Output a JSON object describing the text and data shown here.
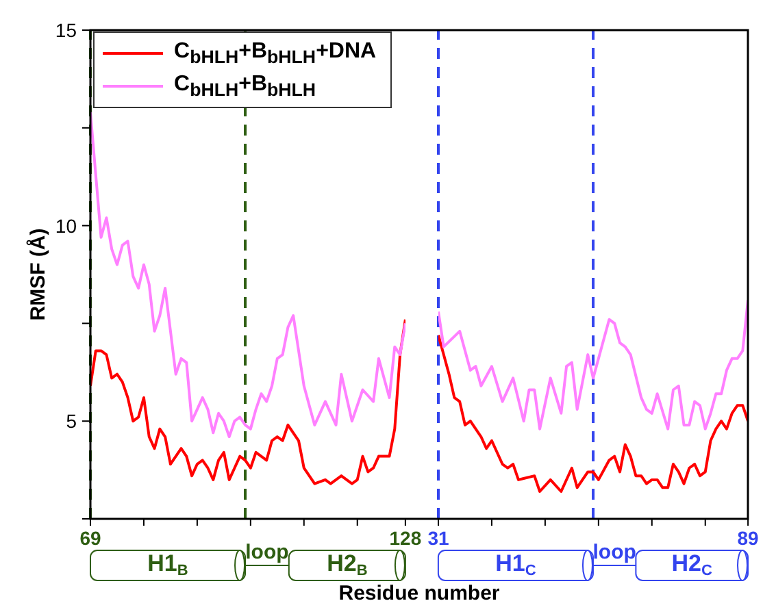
{
  "chart_data": [
    {
      "type": "line",
      "xlabel": "Residue number",
      "ylabel": "RMSF (Å)",
      "xlim": [
        69,
        128
      ],
      "xticks": [
        69,
        {
          "value": 79,
          "label": null
        },
        {
          "value": 89,
          "label": null
        },
        {
          "value": 99,
          "label": null
        },
        {
          "value": 109,
          "label": null
        },
        {
          "value": 119,
          "label": null
        },
        128
      ],
      "ylim": [
        2.5,
        15
      ],
      "yticks": [
        {
          "value": 2.5,
          "label": null
        },
        5,
        {
          "value": 7.5,
          "label": null
        },
        10,
        {
          "value": 12.5,
          "label": null
        },
        15
      ],
      "legend": "top left",
      "marker": "none",
      "line_style": "solid",
      "ref_lines": [
        {
          "axis": "x",
          "value": 69,
          "color": "#2e5e12",
          "line_style": "dashed"
        },
        {
          "axis": "x",
          "value": 98,
          "color": "#2e5e12",
          "line_style": "dashed"
        }
      ],
      "annotations": [
        "H1$_{B}$",
        "loop",
        "H2$_{B}$"
      ],
      "series": [
        {
          "name": "C$_{bHLH}$+B$_{bHLH}$+DNA",
          "color": "#ff0000",
          "x": [
            69,
            70,
            71,
            72,
            73,
            74,
            75,
            76,
            77,
            78,
            79,
            80,
            81,
            82,
            83,
            84,
            85,
            86,
            87,
            88,
            89,
            90,
            91,
            92,
            93,
            94,
            95,
            96,
            97,
            98,
            99,
            100,
            101,
            102,
            103,
            104,
            105,
            106,
            107,
            108,
            109,
            111,
            113,
            114,
            116,
            118,
            119,
            120,
            121,
            122,
            123,
            124,
            125,
            126,
            127,
            128
          ],
          "values": [
            5.9,
            6.8,
            6.8,
            6.7,
            6.1,
            6.2,
            6.0,
            5.6,
            5.0,
            5.1,
            5.6,
            4.6,
            4.3,
            4.8,
            4.6,
            3.9,
            4.1,
            4.3,
            4.1,
            3.6,
            3.9,
            4.0,
            3.8,
            3.5,
            4.0,
            4.2,
            3.5,
            3.8,
            4.1,
            4.0,
            3.8,
            4.2,
            4.1,
            4.0,
            4.5,
            4.6,
            4.5,
            4.9,
            4.7,
            4.5,
            3.8,
            3.4,
            3.5,
            3.4,
            3.6,
            3.4,
            3.5,
            4.1,
            3.7,
            3.8,
            4.1,
            4.1,
            4.1,
            4.8,
            6.7,
            7.6
          ]
        },
        {
          "name": "C$_{bHLH}$+B$_{bHLH}$",
          "color": "#ff80ff",
          "x": [
            69,
            71,
            72,
            73,
            74,
            75,
            76,
            77,
            78,
            79,
            80,
            81,
            82,
            83,
            84,
            85,
            86,
            87,
            88,
            89,
            90,
            91,
            92,
            93,
            94,
            95,
            96,
            97,
            98,
            99,
            100,
            101,
            102,
            103,
            104,
            105,
            106,
            107,
            109,
            111,
            113,
            115,
            116,
            118,
            120,
            122,
            123,
            125,
            126,
            127,
            128
          ],
          "values": [
            12.9,
            9.7,
            10.2,
            9.4,
            9.0,
            9.5,
            9.6,
            8.7,
            8.4,
            9.0,
            8.5,
            7.3,
            7.7,
            8.4,
            7.3,
            6.2,
            6.6,
            6.5,
            5.0,
            5.3,
            5.6,
            5.3,
            4.7,
            5.2,
            5.0,
            4.6,
            5.0,
            5.1,
            4.9,
            4.8,
            5.3,
            5.7,
            5.5,
            5.9,
            6.6,
            6.7,
            7.4,
            7.7,
            5.9,
            4.9,
            5.5,
            4.9,
            6.2,
            5.0,
            5.8,
            5.5,
            6.6,
            5.6,
            6.9,
            6.7,
            7.5
          ]
        }
      ]
    },
    {
      "type": "line",
      "xlim": [
        31,
        89
      ],
      "xticks": [
        31,
        {
          "value": 41,
          "label": null
        },
        {
          "value": 51,
          "label": null
        },
        {
          "value": 61,
          "label": null
        },
        {
          "value": 71,
          "label": null
        },
        {
          "value": 81,
          "label": null
        },
        89
      ],
      "ylim": [
        2.5,
        15
      ],
      "tick_labels": "x",
      "marker": "none",
      "line_style": "solid",
      "ref_lines": [
        {
          "axis": "x",
          "value": 31,
          "color": "#3344ee",
          "line_style": "dashed"
        },
        {
          "axis": "x",
          "value": 60,
          "color": "#3344ee",
          "line_style": "dashed"
        }
      ],
      "annotations": [
        "H1$_{C}$",
        "loop",
        "H2$_{C}$"
      ],
      "series": [
        {
          "color": "#ff0000",
          "x": [
            31,
            33,
            34,
            35,
            36,
            37,
            39,
            40,
            41,
            43,
            44,
            45,
            46,
            49,
            50,
            52,
            54,
            56,
            57,
            59,
            60,
            61,
            63,
            64,
            65,
            66,
            67,
            68,
            69,
            70,
            71,
            72,
            73,
            74,
            75,
            76,
            77,
            78,
            79,
            80,
            81,
            82,
            83,
            84,
            85,
            86,
            87,
            88,
            89
          ],
          "values": [
            7.2,
            6.2,
            5.6,
            5.5,
            4.9,
            5.0,
            4.6,
            4.3,
            4.5,
            3.9,
            3.8,
            3.9,
            3.5,
            3.6,
            3.2,
            3.5,
            3.2,
            3.8,
            3.3,
            3.7,
            3.7,
            3.5,
            4.0,
            4.1,
            3.7,
            4.4,
            4.1,
            3.6,
            3.6,
            3.4,
            3.5,
            3.5,
            3.3,
            3.3,
            3.9,
            3.7,
            3.4,
            3.8,
            3.9,
            3.6,
            3.7,
            4.5,
            4.8,
            5.0,
            4.8,
            5.2,
            5.4,
            5.4,
            5.0
          ]
        },
        {
          "color": "#ff80ff",
          "x": [
            31,
            32,
            35,
            37,
            38,
            39,
            41,
            43,
            45,
            47,
            48,
            49,
            50,
            52,
            54,
            55,
            56,
            57,
            59,
            60,
            63,
            64,
            65,
            66,
            67,
            69,
            70,
            71,
            72,
            74,
            75,
            76,
            77,
            78,
            79,
            80,
            81,
            82,
            83,
            84,
            85,
            86,
            87,
            88,
            89
          ],
          "values": [
            7.8,
            6.9,
            7.3,
            6.3,
            6.4,
            5.9,
            6.4,
            5.5,
            6.1,
            5.0,
            5.8,
            5.8,
            4.8,
            6.1,
            5.2,
            6.4,
            6.5,
            5.3,
            6.7,
            6.1,
            7.6,
            7.5,
            7.0,
            6.9,
            6.7,
            5.6,
            5.3,
            5.2,
            5.7,
            4.8,
            5.8,
            5.9,
            4.9,
            4.9,
            5.5,
            5.4,
            4.8,
            5.2,
            5.7,
            5.7,
            6.3,
            6.6,
            6.6,
            6.8,
            8.1
          ]
        }
      ]
    }
  ]
}
